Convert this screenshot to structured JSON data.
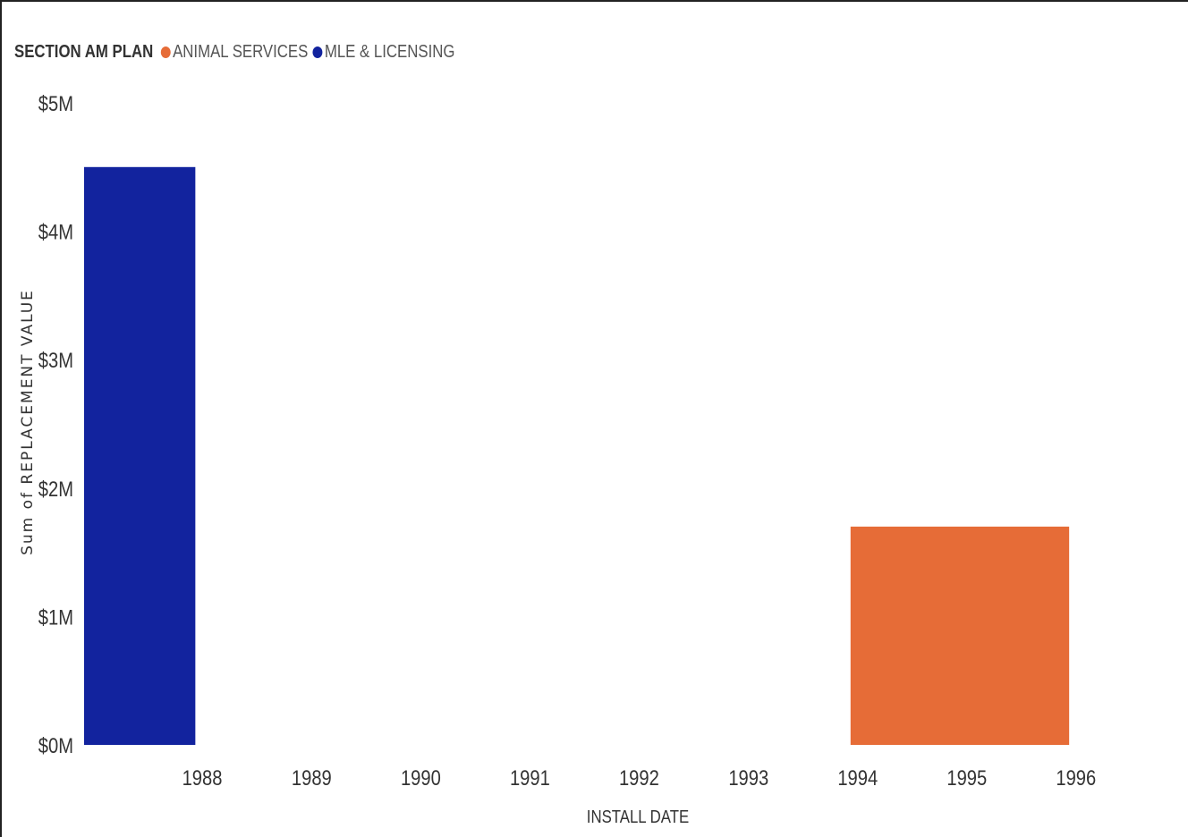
{
  "chart_data": {
    "type": "bar",
    "title": "",
    "legend": {
      "title": "SECTION AM PLAN",
      "position": "top-left"
    },
    "xlabel": "INSTALL DATE",
    "ylabel": "Sum of REPLACEMENT VALUE",
    "x_ticks": [
      "1988",
      "1989",
      "1990",
      "1991",
      "1992",
      "1993",
      "1994",
      "1995",
      "1996"
    ],
    "y_ticks": [
      "$0M",
      "$1M",
      "$2M",
      "$3M",
      "$4M",
      "$5M"
    ],
    "ylim": [
      0,
      5000000
    ],
    "grid": false,
    "series": [
      {
        "name": "ANIMAL SERVICES",
        "color": "#E66C37",
        "points": [
          {
            "start": "1995-01-01",
            "end": "1997-01-01",
            "value": 1700000
          }
        ]
      },
      {
        "name": "MLE & LICENSING",
        "color": "#12239E",
        "points": [
          {
            "start": "1987-01-01",
            "end": "1989-01-01",
            "value": 4500000
          }
        ]
      }
    ]
  }
}
